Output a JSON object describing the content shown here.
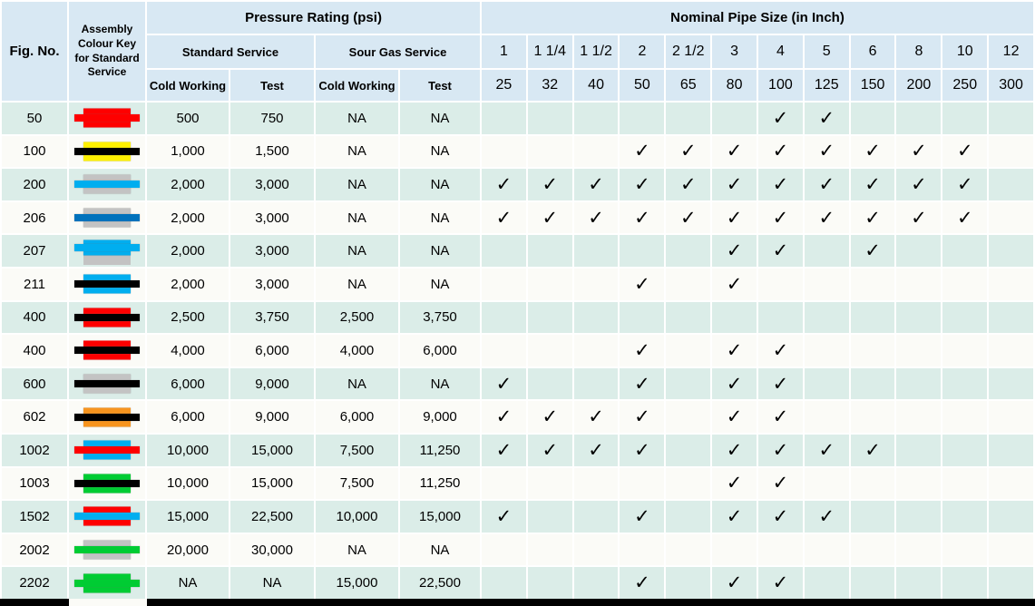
{
  "table": {
    "headers": {
      "fig_no": "Fig. No.",
      "colour_key": "Assembly Colour Key for Standard Service",
      "pressure_rating": "Pressure Rating (psi)",
      "standard_service": "Standard Service",
      "sour_gas_service": "Sour Gas Service",
      "cold_working": "Cold Working",
      "test": "Test",
      "nominal_pipe_size": "Nominal Pipe Size (in Inch)",
      "pipe_sizes_inch": [
        "1",
        "1 1/4",
        "1 1/2",
        "2",
        "2 1/2",
        "3",
        "4",
        "5",
        "6",
        "8",
        "10",
        "12"
      ],
      "pipe_sizes_mm": [
        "25",
        "32",
        "40",
        "50",
        "65",
        "80",
        "100",
        "125",
        "150",
        "200",
        "250",
        "300"
      ]
    },
    "colors": {
      "red": "#fe0000",
      "yellow": "#fff100",
      "cyan": "#00aeef",
      "blue": "#0072bc",
      "gray": "#c3c3c3",
      "orange": "#f7941e",
      "green": "#00cc33",
      "black": "#000000",
      "header_bg": "#d8e8f3",
      "row_mint_bg": "#dbede8",
      "row_plain_bg": "#fbfbf7"
    },
    "glyphs": {
      "check": "✓"
    },
    "rows": [
      {
        "fig": "50",
        "key": {
          "rect": "red",
          "bar": "red"
        },
        "std_cw": "500",
        "std_test": "750",
        "sour_cw": "NA",
        "sour_test": "NA",
        "checks": [
          "4",
          "5"
        ]
      },
      {
        "fig": "100",
        "key": {
          "rect": "yellow",
          "bar": "black"
        },
        "std_cw": "1,000",
        "std_test": "1,500",
        "sour_cw": "NA",
        "sour_test": "NA",
        "checks": [
          "2",
          "2 1/2",
          "3",
          "4",
          "5",
          "6",
          "8",
          "10"
        ]
      },
      {
        "fig": "200",
        "key": {
          "rect": "gray",
          "bar": "cyan"
        },
        "std_cw": "2,000",
        "std_test": "3,000",
        "sour_cw": "NA",
        "sour_test": "NA",
        "checks": [
          "1",
          "1 1/4",
          "1 1/2",
          "2",
          "2 1/2",
          "3",
          "4",
          "5",
          "6",
          "8",
          "10"
        ]
      },
      {
        "fig": "206",
        "key": {
          "rect": "gray",
          "bar": "blue"
        },
        "std_cw": "2,000",
        "std_test": "3,000",
        "sour_cw": "NA",
        "sour_test": "NA",
        "checks": [
          "1",
          "1 1/4",
          "1 1/2",
          "2",
          "2 1/2",
          "3",
          "4",
          "5",
          "6",
          "8",
          "10"
        ]
      },
      {
        "fig": "207",
        "key": {
          "rect": "cyan",
          "bar": "cyan",
          "backing": "gray",
          "offset": true
        },
        "std_cw": "2,000",
        "std_test": "3,000",
        "sour_cw": "NA",
        "sour_test": "NA",
        "checks": [
          "3",
          "4",
          "6"
        ]
      },
      {
        "fig": "211",
        "key": {
          "rect": "cyan",
          "bar": "black"
        },
        "std_cw": "2,000",
        "std_test": "3,000",
        "sour_cw": "NA",
        "sour_test": "NA",
        "checks": [
          "2",
          "3"
        ]
      },
      {
        "fig": "400",
        "key": {
          "rect": "red",
          "bar": "black"
        },
        "std_cw": "2,500",
        "std_test": "3,750",
        "sour_cw": "2,500",
        "sour_test": "3,750",
        "checks": []
      },
      {
        "fig": "400",
        "key": {
          "rect": "red",
          "bar": "black"
        },
        "std_cw": "4,000",
        "std_test": "6,000",
        "sour_cw": "4,000",
        "sour_test": "6,000",
        "checks": [
          "2",
          "3",
          "4"
        ]
      },
      {
        "fig": "600",
        "key": {
          "rect": "gray",
          "bar": "black"
        },
        "std_cw": "6,000",
        "std_test": "9,000",
        "sour_cw": "NA",
        "sour_test": "NA",
        "checks": [
          "1",
          "2",
          "3",
          "4"
        ]
      },
      {
        "fig": "602",
        "key": {
          "rect": "orange",
          "bar": "black"
        },
        "std_cw": "6,000",
        "std_test": "9,000",
        "sour_cw": "6,000",
        "sour_test": "9,000",
        "checks": [
          "1",
          "1 1/4",
          "1 1/2",
          "2",
          "3",
          "4"
        ]
      },
      {
        "fig": "1002",
        "key": {
          "rect": "cyan",
          "bar": "red"
        },
        "std_cw": "10,000",
        "std_test": "15,000",
        "sour_cw": "7,500",
        "sour_test": "11,250",
        "checks": [
          "1",
          "1 1/4",
          "1 1/2",
          "2",
          "3",
          "4",
          "5",
          "6"
        ]
      },
      {
        "fig": "1003",
        "key": {
          "rect": "green",
          "bar": "black"
        },
        "std_cw": "10,000",
        "std_test": "15,000",
        "sour_cw": "7,500",
        "sour_test": "11,250",
        "checks": [
          "3",
          "4"
        ]
      },
      {
        "fig": "1502",
        "key": {
          "rect": "red",
          "bar": "cyan"
        },
        "std_cw": "15,000",
        "std_test": "22,500",
        "sour_cw": "10,000",
        "sour_test": "15,000",
        "checks": [
          "1",
          "2",
          "3",
          "4",
          "5"
        ]
      },
      {
        "fig": "2002",
        "key": {
          "rect": "gray",
          "bar": "green"
        },
        "std_cw": "20,000",
        "std_test": "30,000",
        "sour_cw": "NA",
        "sour_test": "NA",
        "checks": []
      },
      {
        "fig": "2202",
        "key": {
          "rect": "green",
          "bar": "green"
        },
        "std_cw": "NA",
        "std_test": "NA",
        "sour_cw": "15,000",
        "sour_test": "22,500",
        "checks": [
          "2",
          "3",
          "4"
        ]
      }
    ]
  }
}
